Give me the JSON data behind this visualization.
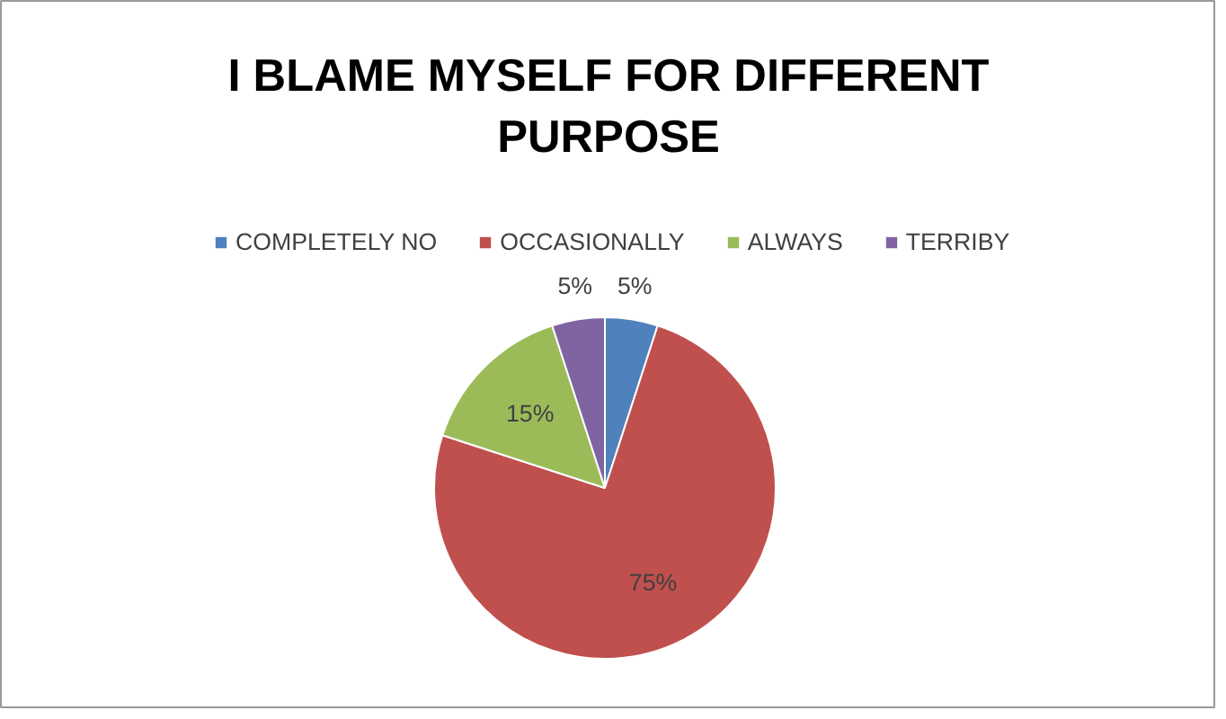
{
  "chart_data": {
    "type": "pie",
    "title": "I BLAME MYSELF FOR DIFFERENT PURPOSE",
    "categories": [
      "COMPLETELY NO",
      "OCCASIONALLY",
      "ALWAYS",
      "TERRIBY"
    ],
    "values": [
      5,
      75,
      15,
      5
    ],
    "colors": [
      "#4f81bd",
      "#c0504d",
      "#9bbb59",
      "#8064a2"
    ],
    "value_labels": [
      "5%",
      "75%",
      "15%",
      "5%"
    ],
    "legend": "top"
  }
}
